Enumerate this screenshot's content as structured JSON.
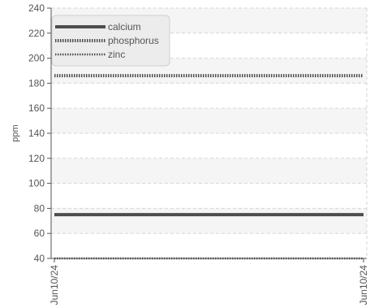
{
  "chart_data": {
    "type": "line",
    "title": "",
    "xlabel": "",
    "ylabel": "ppm",
    "ylim": [
      40,
      240
    ],
    "yticks": [
      40,
      60,
      80,
      100,
      120,
      140,
      160,
      180,
      200,
      220,
      240
    ],
    "x": [
      "Jun10/24",
      "Jun10/24"
    ],
    "grid": true,
    "legend_position": "top-left",
    "series": [
      {
        "name": "calcium",
        "values": [
          75,
          75
        ],
        "color": "#4d4d4d",
        "style": "solid"
      },
      {
        "name": "phosphorus",
        "values": [
          186,
          186
        ],
        "color": "#4d4d4d",
        "style": "dotted-thick"
      },
      {
        "name": "zinc",
        "values": [
          40,
          40
        ],
        "color": "#4d4d4d",
        "style": "dotted-thin"
      }
    ]
  }
}
